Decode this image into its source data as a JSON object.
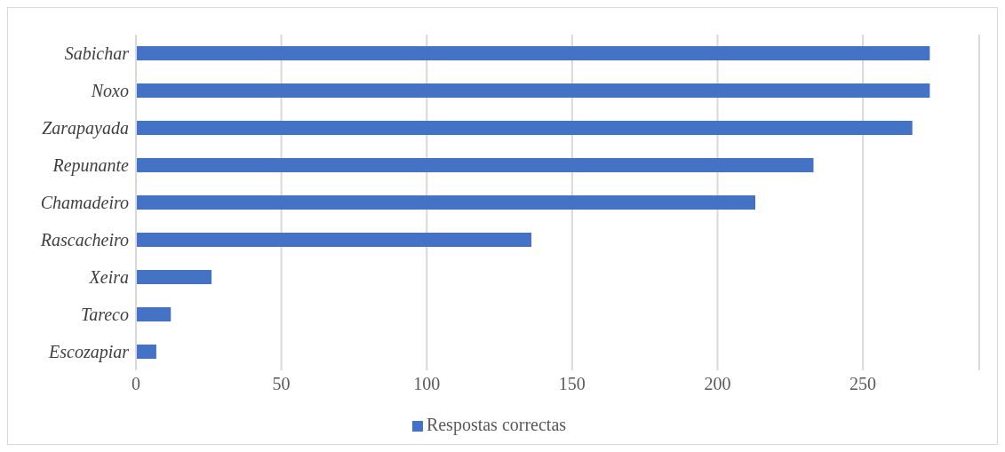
{
  "chart_data": {
    "type": "bar",
    "orientation": "horizontal",
    "categories": [
      "Sabichar",
      "Noxo",
      "Zarapayada",
      "Repunante",
      "Chamadeiro",
      "Rascacheiro",
      "Xeira",
      "Tareco",
      "Escozapiar"
    ],
    "series": [
      {
        "name": "Respostas correctas",
        "color": "#4472c4",
        "values": [
          273,
          273,
          267,
          233,
          213,
          136,
          26,
          12,
          7
        ]
      }
    ],
    "xlim": [
      0,
      290
    ],
    "xticks": [
      0,
      50,
      100,
      150,
      200,
      250
    ],
    "grid": "x",
    "legend": "bottom"
  }
}
